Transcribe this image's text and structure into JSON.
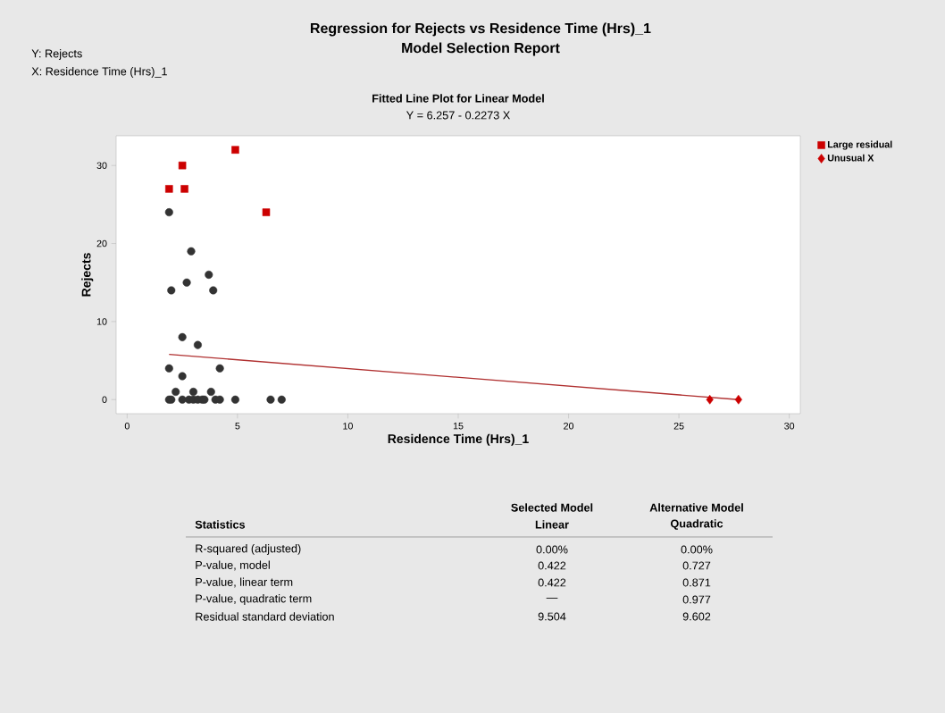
{
  "chart_data": {
    "type": "scatter",
    "title": "Regression for Rejects vs Residence Time (Hrs)_1",
    "subtitle": "Model Selection Report",
    "xlabel": "Residence Time (Hrs)_1",
    "ylabel": "Rejects",
    "xlim": [
      -0.5,
      30.5
    ],
    "ylim": [
      -1.8,
      33.8
    ],
    "xticks": [
      0,
      5,
      10,
      15,
      20,
      25,
      30
    ],
    "yticks": [
      0,
      10,
      20,
      30
    ],
    "grid": false,
    "legend": "top right",
    "series": [
      {
        "marker": "circle",
        "color": "#333333",
        "x": [
          1.9,
          2.9,
          3.7,
          2.7,
          2.0,
          3.9,
          2.5,
          3.2,
          1.9,
          4.2,
          2.5,
          2.2,
          3.0,
          3.8,
          1.9,
          2.0,
          2.5,
          2.8,
          3.0,
          3.2,
          3.4,
          3.5,
          4.0,
          4.2,
          4.9,
          6.5,
          7.0
        ],
        "values": [
          24,
          19,
          16,
          15,
          14,
          14,
          8,
          7,
          4,
          4,
          3,
          1,
          1,
          1,
          0,
          0,
          0,
          0,
          0,
          0,
          0,
          0,
          0,
          0,
          0,
          0,
          0
        ]
      },
      {
        "name": "Large residual",
        "marker": "square",
        "color": "#cc0000",
        "x": [
          1.9,
          2.5,
          2.6,
          4.9,
          6.3
        ],
        "values": [
          27,
          30,
          27,
          32,
          24
        ]
      },
      {
        "name": "Unusual X",
        "marker": "diamond",
        "color": "#cc0000",
        "x": [
          26.4,
          27.7
        ],
        "values": [
          0,
          0
        ]
      },
      {
        "type": "line",
        "marker": "none",
        "color": "#b03030",
        "x": [
          1.9,
          27.7
        ],
        "values": [
          5.8,
          0.0
        ]
      }
    ],
    "annotations": [
      "Y: Rejects",
      "X: Residence Time (Hrs)_1",
      "Fitted Line Plot for Linear Model",
      "Y = 6.257 - 0.2273 X",
      "Statistics",
      "Selected Model",
      "Linear",
      "Alternative Model",
      "Quadratic",
      "R-squared (adjusted)",
      "0.00%",
      "0.00%",
      "P-value, model",
      "0.422",
      "0.727",
      "P-value, linear term",
      "0.422",
      "0.871",
      "P-value, quadratic term",
      "—",
      "0.977",
      "Residual standard deviation",
      "9.504",
      "9.602"
    ]
  }
}
